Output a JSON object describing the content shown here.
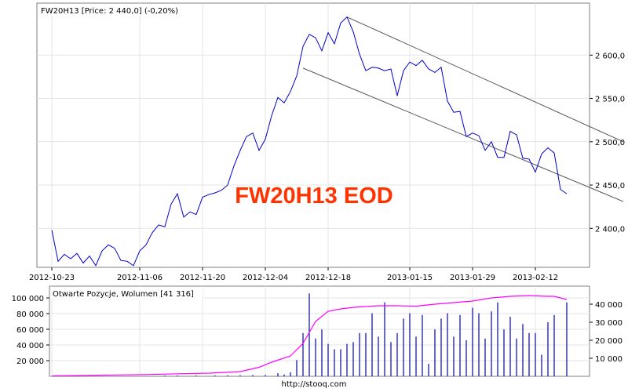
{
  "page": {
    "footer": "http://stooq.com"
  },
  "chart_data": [
    {
      "type": "line",
      "title": "FW20H13 [Price: 2 440,0] (-0,20%)",
      "watermark": "FW20H13 EOD",
      "x_labels": [
        "2012-10-23",
        "2012-11-06",
        "2012-11-20",
        "2012-12-04",
        "2012-12-18",
        "2013-01-15",
        "2013-01-29",
        "2013-02-12"
      ],
      "y_ticks": [
        "2 400,0",
        "2 450,0",
        "2 500,0",
        "2 550,0",
        "2 600,0"
      ],
      "ylim": [
        2355,
        2660
      ],
      "colors": {
        "price": "#0000cc",
        "channel": "#555555",
        "watermark": "#ff3300"
      },
      "series": [
        {
          "values": [
            2398,
            2362,
            2370,
            2365,
            2371,
            2360,
            2368,
            2357,
            2374,
            2381,
            2377,
            2363,
            2362,
            2357,
            2374,
            2381,
            2395,
            2404,
            2402,
            2428,
            2440,
            2413,
            2419,
            2416,
            2436,
            2439,
            2441,
            2444,
            2450,
            2472,
            2490,
            2506,
            2510,
            2490,
            2503,
            2530,
            2551,
            2545,
            2558,
            2576,
            2610,
            2624,
            2620,
            2605,
            2626,
            2613,
            2637,
            2644,
            2627,
            2601,
            2582,
            2586,
            2585,
            2582,
            2584,
            2553,
            2582,
            2592,
            2588,
            2594,
            2584,
            2580,
            2586,
            2547,
            2534,
            2535,
            2506,
            2510,
            2507,
            2490,
            2500,
            2482,
            2482,
            2512,
            2508,
            2481,
            2480,
            2465,
            2486,
            2493,
            2487,
            2445,
            2440
          ]
        }
      ],
      "channel_lines": [
        {
          "values": [
            2644,
            2500
          ],
          "index_range": [
            47,
            91
          ]
        },
        {
          "values": [
            2585,
            2431
          ],
          "index_range": [
            40,
            91
          ]
        }
      ]
    },
    {
      "type": "bar",
      "title": "Otwarte Pozycje, Wolumen [41 316]",
      "left_ticks": [
        "20 000",
        "40 000",
        "60 000",
        "80 000",
        "100 000"
      ],
      "right_ticks": [
        "10 000",
        "20 000",
        "30 000",
        "40 000"
      ],
      "left_ylim": [
        0,
        115000
      ],
      "right_ylim": [
        0,
        50000
      ],
      "colors": {
        "volume": "#0000cc",
        "open_interest": "#ff00ff"
      },
      "series": [
        {
          "name": "Wolumen",
          "axis": "right",
          "bars": [
            {
              "i": 18,
              "v": 400
            },
            {
              "i": 20,
              "v": 500
            },
            {
              "i": 23,
              "v": 450
            },
            {
              "i": 26,
              "v": 500
            },
            {
              "i": 28,
              "v": 550
            },
            {
              "i": 30,
              "v": 600
            },
            {
              "i": 32,
              "v": 700
            },
            {
              "i": 34,
              "v": 750
            },
            {
              "i": 36,
              "v": 1700
            },
            {
              "i": 37,
              "v": 1000
            },
            {
              "i": 38,
              "v": 2200
            },
            {
              "i": 39,
              "v": 9000
            },
            {
              "i": 40,
              "v": 24000
            },
            {
              "i": 41,
              "v": 46000
            },
            {
              "i": 42,
              "v": 21000
            },
            {
              "i": 43,
              "v": 26000
            },
            {
              "i": 44,
              "v": 18000
            },
            {
              "i": 45,
              "v": 15000
            },
            {
              "i": 46,
              "v": 15000
            },
            {
              "i": 47,
              "v": 18000
            },
            {
              "i": 48,
              "v": 19000
            },
            {
              "i": 49,
              "v": 24000
            },
            {
              "i": 50,
              "v": 24000
            },
            {
              "i": 51,
              "v": 35000
            },
            {
              "i": 52,
              "v": 22000
            },
            {
              "i": 53,
              "v": 41000
            },
            {
              "i": 54,
              "v": 19000
            },
            {
              "i": 55,
              "v": 24000
            },
            {
              "i": 56,
              "v": 32000
            },
            {
              "i": 57,
              "v": 35000
            },
            {
              "i": 58,
              "v": 22000
            },
            {
              "i": 59,
              "v": 34000
            },
            {
              "i": 60,
              "v": 7000
            },
            {
              "i": 61,
              "v": 26000
            },
            {
              "i": 62,
              "v": 32000
            },
            {
              "i": 63,
              "v": 35000
            },
            {
              "i": 64,
              "v": 22000
            },
            {
              "i": 65,
              "v": 34000
            },
            {
              "i": 66,
              "v": 20000
            },
            {
              "i": 67,
              "v": 38000
            },
            {
              "i": 68,
              "v": 35000
            },
            {
              "i": 69,
              "v": 21000
            },
            {
              "i": 70,
              "v": 36000
            },
            {
              "i": 71,
              "v": 41000
            },
            {
              "i": 72,
              "v": 26000
            },
            {
              "i": 73,
              "v": 33000
            },
            {
              "i": 74,
              "v": 21000
            },
            {
              "i": 75,
              "v": 29000
            },
            {
              "i": 76,
              "v": 24000
            },
            {
              "i": 77,
              "v": 24000
            },
            {
              "i": 78,
              "v": 12000
            },
            {
              "i": 79,
              "v": 30000
            },
            {
              "i": 80,
              "v": 34000
            },
            {
              "i": 82,
              "v": 41000
            }
          ]
        },
        {
          "name": "Otwarte Pozycje",
          "axis": "left",
          "x": [
            0,
            5,
            10,
            15,
            20,
            25,
            30,
            33,
            35,
            38,
            40,
            42,
            44,
            46,
            48,
            50,
            52,
            55,
            58,
            61,
            64,
            67,
            70,
            73,
            76,
            79,
            80,
            82
          ],
          "values": [
            500,
            1200,
            1700,
            2200,
            3200,
            4000,
            6000,
            11500,
            18000,
            26000,
            42000,
            70000,
            83000,
            86000,
            88000,
            89000,
            90000,
            90000,
            89500,
            92000,
            94000,
            96000,
            100000,
            102000,
            103000,
            102000,
            102000,
            98000
          ]
        }
      ]
    }
  ]
}
